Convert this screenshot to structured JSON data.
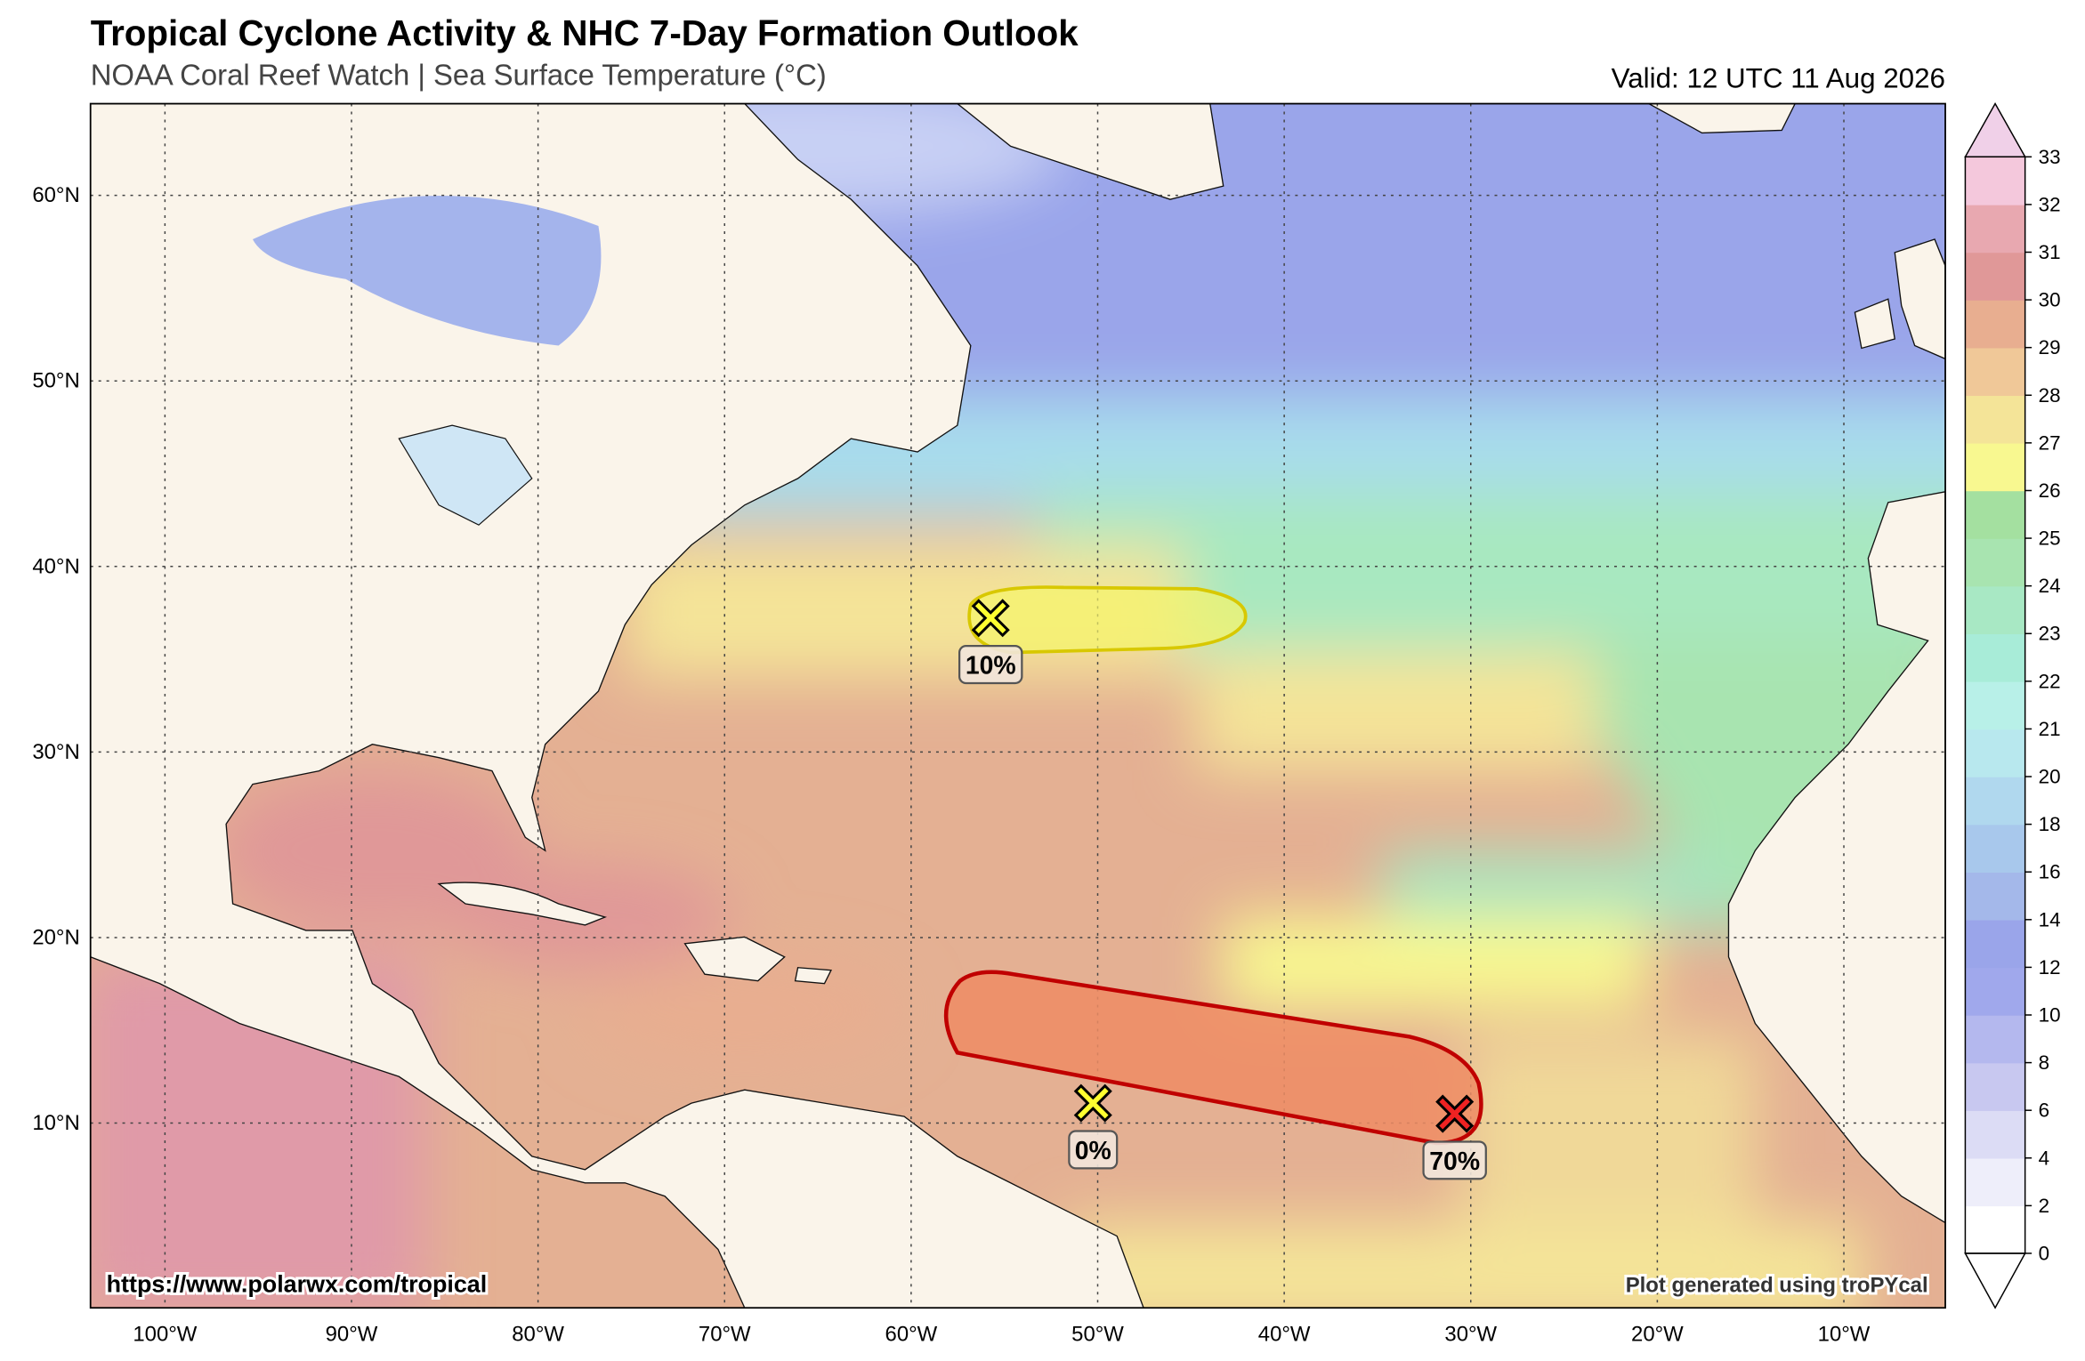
{
  "header": {
    "title": "Tropical Cyclone Activity & NHC 7-Day Formation Outlook",
    "subtitle": "NOAA Coral Reef Watch | Sea Surface Temperature (°C)",
    "valid": "Valid: 12 UTC 11 Aug 2026"
  },
  "map": {
    "lat_labels": [
      "10°N",
      "20°N",
      "30°N",
      "40°N",
      "50°N",
      "60°N"
    ],
    "lon_labels": [
      "100°W",
      "90°W",
      "80°W",
      "70°W",
      "60°W",
      "50°W",
      "40°W",
      "30°W",
      "20°W",
      "10°W"
    ]
  },
  "colorbar": {
    "ticks": [
      0,
      2,
      4,
      6,
      8,
      10,
      12,
      14,
      16,
      18,
      20,
      21,
      22,
      23,
      24,
      25,
      26,
      27,
      28,
      29,
      30,
      31,
      32,
      33
    ],
    "colors": [
      "#ffffff",
      "#eeeefa",
      "#dcdcf5",
      "#c8c8f0",
      "#b4b8ee",
      "#a0a8ec",
      "#9aa5ea",
      "#a4b8ea",
      "#a8c8ec",
      "#b0d8ee",
      "#b8e8ee",
      "#b8f0e8",
      "#a8ecd8",
      "#a8e8c4",
      "#a8e4b0",
      "#a4e0a0",
      "#f8f890",
      "#f4e498",
      "#f0c898",
      "#e8ae90",
      "#e09898",
      "#e8a8b0",
      "#f4c8dc"
    ],
    "over_color": "#f0d0e8",
    "under_color": "#ffffff"
  },
  "disturbances": [
    {
      "label": "10%",
      "color": "#ffff30"
    },
    {
      "label": "0%",
      "color": "#ffff30"
    },
    {
      "label": "70%",
      "color": "#ee2222"
    }
  ],
  "footer": {
    "left": "https://www.polarwx.com/tropical",
    "right": "Plot generated using troPYcal"
  }
}
